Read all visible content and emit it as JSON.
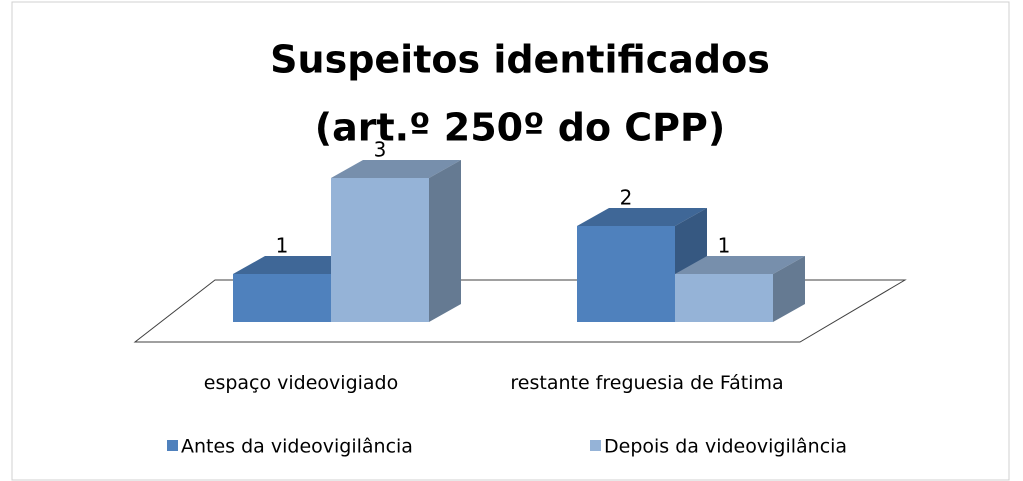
{
  "chart_data": {
    "type": "bar3d",
    "title": [
      "Suspeitos identificados",
      "(art.º 250º do CPP)"
    ],
    "categories": [
      "espaço videovigiado",
      "restante freguesia de Fátima"
    ],
    "series": [
      {
        "name": "Antes da videovigilância",
        "color": "#4f81bd",
        "values": [
          1,
          2
        ]
      },
      {
        "name": "Depois da videovigilância",
        "color": "#95b3d7",
        "values": [
          3,
          1
        ]
      }
    ],
    "legend": "bottom"
  }
}
